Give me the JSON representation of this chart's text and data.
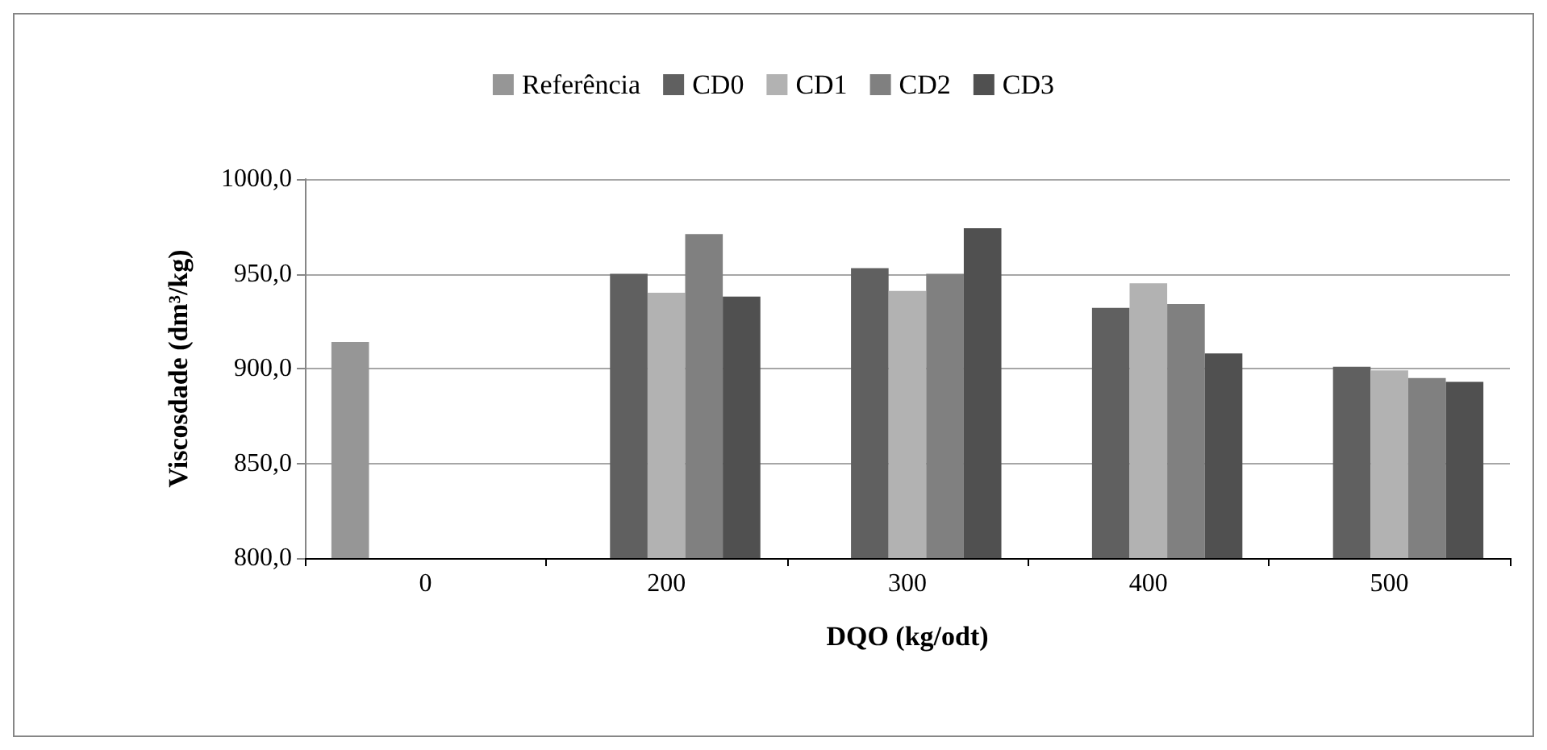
{
  "chart_data": {
    "type": "bar",
    "xlabel": "DQO (kg/odt)",
    "ylabel": "Viscosdade (dm³/kg)",
    "categories": [
      "0",
      "200",
      "300",
      "400",
      "500"
    ],
    "series": [
      {
        "name": "Referência",
        "color": "#969696",
        "values": [
          914,
          null,
          null,
          null,
          null
        ]
      },
      {
        "name": "CD0",
        "color": "#606060",
        "values": [
          null,
          950,
          953,
          932,
          901
        ]
      },
      {
        "name": "CD1",
        "color": "#b2b2b2",
        "values": [
          null,
          940,
          941,
          945,
          899
        ]
      },
      {
        "name": "CD2",
        "color": "#808080",
        "values": [
          null,
          971,
          950,
          934,
          895
        ]
      },
      {
        "name": "CD3",
        "color": "#505050",
        "values": [
          null,
          938,
          974,
          908,
          893
        ]
      }
    ],
    "ylim": [
      800,
      1000
    ],
    "yticks": [
      {
        "value": 800,
        "label": "800,0"
      },
      {
        "value": 850,
        "label": "850,0"
      },
      {
        "value": 900,
        "label": "900,0"
      },
      {
        "value": 950,
        "label": "950,0"
      },
      {
        "value": 1000,
        "label": "1000,0"
      }
    ],
    "grid": "y",
    "legend": "top"
  }
}
